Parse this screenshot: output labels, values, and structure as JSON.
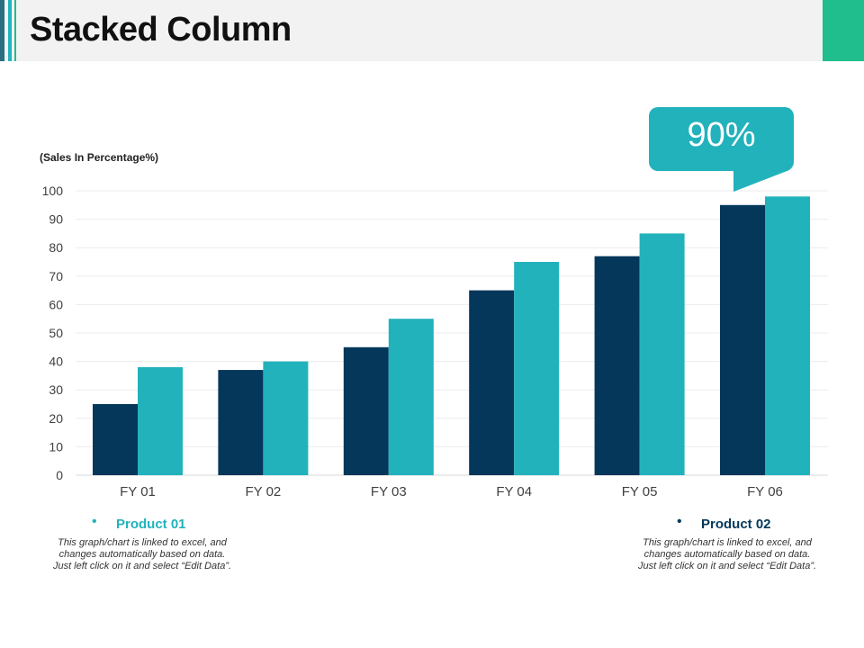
{
  "header": {
    "title": "Stacked Column"
  },
  "callout": {
    "value": "90%"
  },
  "chart_data": {
    "type": "bar",
    "title": "",
    "ylabel": "(Sales In Percentage%)",
    "xlabel": "",
    "categories": [
      "FY 01",
      "FY 02",
      "FY 03",
      "FY 04",
      "FY 05",
      "FY 06"
    ],
    "series": [
      {
        "name": "Product 01",
        "values": [
          25,
          37,
          45,
          65,
          77,
          95
        ],
        "color": "#04375a"
      },
      {
        "name": "Product 02",
        "values": [
          38,
          40,
          55,
          75,
          85,
          98
        ],
        "color": "#22b2bc"
      }
    ],
    "ylim": [
      0,
      100
    ],
    "yticks": [
      0,
      10,
      20,
      30,
      40,
      50,
      60,
      70,
      80,
      90,
      100
    ],
    "grid": true
  },
  "legend": {
    "items": [
      {
        "title": "Product 01",
        "title_color": "#22b2bc",
        "bullet_color": "#22b2bc",
        "description": "This graph/chart is linked to excel, and changes automatically based on data. Just left click on it and select “Edit Data”."
      },
      {
        "title": "Product 02",
        "title_color": "#04375a",
        "bullet_color": "#04375a",
        "description": "This graph/chart is linked to excel, and changes automatically based on data. Just left click on it and select “Edit Data”."
      }
    ]
  }
}
